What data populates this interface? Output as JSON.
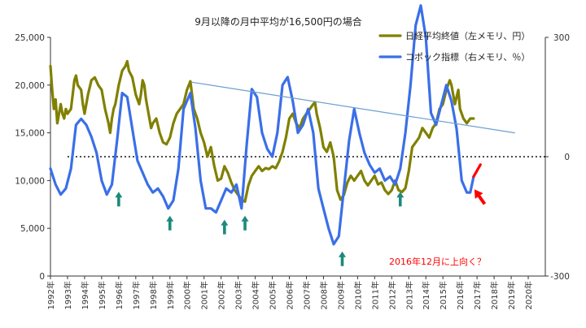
{
  "chart_data": {
    "type": "line",
    "title": "9月以降の月中平均が16,500円の場合",
    "x_tick_labels": [
      "1992年",
      "1993年",
      "1994年",
      "1995年",
      "1996年",
      "1997年",
      "1998年",
      "1999年",
      "2000年",
      "2001年",
      "2002年",
      "2003年",
      "2004年",
      "2005年",
      "2006年",
      "2007年",
      "2008年",
      "2009年",
      "2010年",
      "2011年",
      "2012年",
      "2013年",
      "2014年",
      "2015年",
      "2016年",
      "2017年",
      "2018年",
      "2019年",
      "2020年"
    ],
    "x_range": [
      1992,
      2021
    ],
    "left_axis": {
      "range": [
        0,
        25000
      ],
      "ticks": [
        0,
        5000,
        10000,
        15000,
        20000,
        25000
      ],
      "tick_labels": [
        "0",
        "5,000",
        "10,000",
        "15,000",
        "20,000",
        "25,000"
      ]
    },
    "right_axis": {
      "range": [
        -300,
        300
      ],
      "ticks": [
        -300,
        0,
        300
      ],
      "tick_labels": [
        "-300",
        "0",
        "300"
      ]
    },
    "legend_position": "top-right",
    "colors": {
      "nikkei": "#808000",
      "coppock": "#3b6fe8",
      "trend": "#6a9fd0",
      "bottom_arrow": "#1b8a7a",
      "annotation": "#ff0000"
    },
    "series": [
      {
        "key": "nikkei",
        "name": "日経平均終値（左メモリ、円）",
        "axis": "left",
        "points": [
          [
            1992.0,
            22000
          ],
          [
            1992.1,
            19500
          ],
          [
            1992.2,
            17500
          ],
          [
            1992.3,
            18500
          ],
          [
            1992.4,
            16000
          ],
          [
            1992.5,
            17000
          ],
          [
            1992.6,
            18000
          ],
          [
            1992.7,
            17000
          ],
          [
            1992.8,
            16500
          ],
          [
            1992.9,
            17500
          ],
          [
            1993.0,
            17000
          ],
          [
            1993.2,
            17500
          ],
          [
            1993.4,
            20500
          ],
          [
            1993.5,
            21000
          ],
          [
            1993.6,
            20000
          ],
          [
            1993.8,
            19500
          ],
          [
            1993.9,
            18000
          ],
          [
            1994.0,
            17000
          ],
          [
            1994.2,
            19000
          ],
          [
            1994.4,
            20500
          ],
          [
            1994.6,
            20800
          ],
          [
            1994.8,
            20000
          ],
          [
            1995.0,
            19500
          ],
          [
            1995.2,
            17500
          ],
          [
            1995.4,
            16000
          ],
          [
            1995.5,
            15000
          ],
          [
            1995.6,
            16500
          ],
          [
            1995.7,
            17500
          ],
          [
            1995.8,
            18000
          ],
          [
            1996.0,
            20000
          ],
          [
            1996.2,
            21500
          ],
          [
            1996.4,
            22000
          ],
          [
            1996.5,
            22500
          ],
          [
            1996.6,
            21500
          ],
          [
            1996.8,
            20800
          ],
          [
            1997.0,
            19000
          ],
          [
            1997.2,
            18000
          ],
          [
            1997.3,
            19000
          ],
          [
            1997.4,
            20500
          ],
          [
            1997.5,
            20000
          ],
          [
            1997.6,
            18500
          ],
          [
            1997.8,
            16500
          ],
          [
            1997.9,
            15500
          ],
          [
            1998.0,
            16000
          ],
          [
            1998.2,
            16500
          ],
          [
            1998.4,
            15000
          ],
          [
            1998.6,
            14000
          ],
          [
            1998.8,
            13800
          ],
          [
            1999.0,
            14500
          ],
          [
            1999.2,
            16000
          ],
          [
            1999.4,
            17000
          ],
          [
            1999.6,
            17500
          ],
          [
            1999.8,
            18000
          ],
          [
            2000.0,
            19500
          ],
          [
            2000.2,
            20400
          ],
          [
            2000.4,
            17500
          ],
          [
            2000.6,
            16500
          ],
          [
            2000.8,
            15000
          ],
          [
            2001.0,
            14000
          ],
          [
            2001.2,
            12500
          ],
          [
            2001.4,
            13500
          ],
          [
            2001.6,
            11500
          ],
          [
            2001.8,
            10000
          ],
          [
            2002.0,
            10200
          ],
          [
            2002.2,
            11500
          ],
          [
            2002.4,
            10800
          ],
          [
            2002.6,
            9800
          ],
          [
            2002.8,
            9000
          ],
          [
            2003.0,
            8500
          ],
          [
            2003.2,
            8000
          ],
          [
            2003.4,
            7800
          ],
          [
            2003.6,
            9500
          ],
          [
            2003.8,
            10500
          ],
          [
            2004.0,
            11000
          ],
          [
            2004.2,
            11500
          ],
          [
            2004.4,
            11000
          ],
          [
            2004.6,
            11300
          ],
          [
            2004.8,
            11200
          ],
          [
            2005.0,
            11500
          ],
          [
            2005.2,
            11300
          ],
          [
            2005.4,
            12000
          ],
          [
            2005.6,
            13000
          ],
          [
            2005.8,
            14500
          ],
          [
            2006.0,
            16500
          ],
          [
            2006.2,
            17000
          ],
          [
            2006.4,
            16000
          ],
          [
            2006.6,
            15500
          ],
          [
            2006.8,
            16500
          ],
          [
            2007.0,
            17000
          ],
          [
            2007.2,
            17500
          ],
          [
            2007.4,
            18000
          ],
          [
            2007.5,
            18200
          ],
          [
            2007.6,
            17000
          ],
          [
            2007.8,
            15500
          ],
          [
            2008.0,
            13500
          ],
          [
            2008.2,
            13000
          ],
          [
            2008.4,
            14000
          ],
          [
            2008.6,
            12500
          ],
          [
            2008.8,
            9000
          ],
          [
            2009.0,
            8000
          ],
          [
            2009.2,
            8500
          ],
          [
            2009.4,
            9800
          ],
          [
            2009.6,
            10500
          ],
          [
            2009.8,
            10000
          ],
          [
            2010.0,
            10500
          ],
          [
            2010.2,
            11000
          ],
          [
            2010.4,
            10000
          ],
          [
            2010.6,
            9500
          ],
          [
            2010.8,
            10000
          ],
          [
            2011.0,
            10500
          ],
          [
            2011.2,
            9600
          ],
          [
            2011.4,
            9800
          ],
          [
            2011.6,
            9000
          ],
          [
            2011.8,
            8600
          ],
          [
            2012.0,
            9000
          ],
          [
            2012.2,
            10000
          ],
          [
            2012.4,
            9000
          ],
          [
            2012.6,
            8800
          ],
          [
            2012.8,
            9200
          ],
          [
            2013.0,
            11000
          ],
          [
            2013.2,
            13500
          ],
          [
            2013.4,
            14000
          ],
          [
            2013.6,
            14500
          ],
          [
            2013.8,
            15500
          ],
          [
            2014.0,
            15000
          ],
          [
            2014.2,
            14500
          ],
          [
            2014.4,
            15500
          ],
          [
            2014.6,
            16000
          ],
          [
            2014.8,
            17500
          ],
          [
            2015.0,
            18000
          ],
          [
            2015.2,
            19500
          ],
          [
            2015.4,
            20500
          ],
          [
            2015.5,
            20000
          ],
          [
            2015.7,
            18000
          ],
          [
            2015.9,
            19500
          ],
          [
            2016.0,
            17500
          ],
          [
            2016.2,
            16500
          ],
          [
            2016.4,
            16000
          ],
          [
            2016.6,
            16500
          ],
          [
            2016.8,
            16500
          ]
        ]
      },
      {
        "key": "coppock",
        "name": "コポック指標（右メモリ、％）",
        "axis": "right",
        "points": [
          [
            1992.0,
            -30
          ],
          [
            1992.3,
            -70
          ],
          [
            1992.6,
            -95
          ],
          [
            1992.9,
            -80
          ],
          [
            1993.2,
            -30
          ],
          [
            1993.5,
            80
          ],
          [
            1993.8,
            95
          ],
          [
            1994.1,
            80
          ],
          [
            1994.4,
            50
          ],
          [
            1994.7,
            10
          ],
          [
            1995.0,
            -60
          ],
          [
            1995.3,
            -95
          ],
          [
            1995.6,
            -70
          ],
          [
            1995.9,
            40
          ],
          [
            1996.2,
            160
          ],
          [
            1996.5,
            150
          ],
          [
            1996.8,
            70
          ],
          [
            1997.1,
            -10
          ],
          [
            1997.4,
            -40
          ],
          [
            1997.7,
            -70
          ],
          [
            1998.0,
            -90
          ],
          [
            1998.3,
            -80
          ],
          [
            1998.6,
            -100
          ],
          [
            1998.9,
            -130
          ],
          [
            1999.2,
            -110
          ],
          [
            1999.5,
            -30
          ],
          [
            1999.8,
            120
          ],
          [
            2000.2,
            160
          ],
          [
            2000.5,
            70
          ],
          [
            2000.8,
            -60
          ],
          [
            2001.1,
            -130
          ],
          [
            2001.4,
            -130
          ],
          [
            2001.7,
            -140
          ],
          [
            2002.0,
            -110
          ],
          [
            2002.3,
            -80
          ],
          [
            2002.6,
            -90
          ],
          [
            2002.9,
            -70
          ],
          [
            2003.2,
            -130
          ],
          [
            2003.5,
            30
          ],
          [
            2003.8,
            170
          ],
          [
            2004.1,
            150
          ],
          [
            2004.4,
            60
          ],
          [
            2004.7,
            20
          ],
          [
            2005.0,
            0
          ],
          [
            2005.3,
            60
          ],
          [
            2005.6,
            180
          ],
          [
            2005.9,
            200
          ],
          [
            2006.2,
            140
          ],
          [
            2006.5,
            60
          ],
          [
            2006.8,
            80
          ],
          [
            2007.1,
            120
          ],
          [
            2007.4,
            60
          ],
          [
            2007.7,
            -80
          ],
          [
            2008.0,
            -130
          ],
          [
            2008.3,
            -180
          ],
          [
            2008.6,
            -220
          ],
          [
            2008.9,
            -200
          ],
          [
            2009.2,
            -80
          ],
          [
            2009.5,
            40
          ],
          [
            2009.8,
            120
          ],
          [
            2010.1,
            60
          ],
          [
            2010.4,
            10
          ],
          [
            2010.7,
            -20
          ],
          [
            2011.0,
            -40
          ],
          [
            2011.3,
            -30
          ],
          [
            2011.6,
            -60
          ],
          [
            2011.9,
            -50
          ],
          [
            2012.2,
            -70
          ],
          [
            2012.5,
            -30
          ],
          [
            2012.8,
            60
          ],
          [
            2013.1,
            180
          ],
          [
            2013.4,
            330
          ],
          [
            2013.7,
            380
          ],
          [
            2014.0,
            300
          ],
          [
            2014.3,
            110
          ],
          [
            2014.6,
            80
          ],
          [
            2014.9,
            130
          ],
          [
            2015.2,
            180
          ],
          [
            2015.5,
            140
          ],
          [
            2015.8,
            70
          ],
          [
            2016.1,
            -60
          ],
          [
            2016.4,
            -90
          ],
          [
            2016.6,
            -90
          ],
          [
            2016.8,
            -50
          ]
        ]
      },
      {
        "key": "coppock_projection",
        "axis": "right",
        "points": [
          [
            2016.8,
            -50
          ],
          [
            2017.0,
            -35
          ],
          [
            2017.2,
            -20
          ]
        ]
      },
      {
        "key": "trend",
        "axis": "left",
        "points": [
          [
            2000.3,
            20300
          ],
          [
            2019.2,
            15000
          ]
        ]
      }
    ],
    "baseline": {
      "axis": "right",
      "value": 0,
      "style": "dotted",
      "from": 1993.0,
      "to": 2021.0
    },
    "bottom_markers": [
      1996.0,
      1999.0,
      2002.2,
      2003.4,
      2009.1,
      2012.5
    ],
    "annotation": {
      "text": "2016年12月に上向く？",
      "x": 2016.9,
      "y_right": -60
    }
  }
}
